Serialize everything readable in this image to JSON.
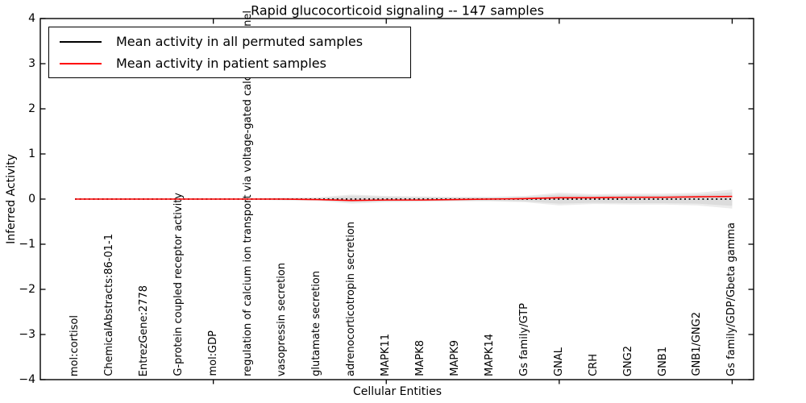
{
  "title": "Rapid glucocorticoid signaling -- 147 samples",
  "axes": {
    "xlabel": "Cellular Entities",
    "ylabel": "Inferred Activity",
    "ytick_labels": [
      "4",
      "3",
      "2",
      "1",
      "0",
      "−1",
      "−2",
      "−3",
      "−4"
    ]
  },
  "legend": {
    "entries": [
      {
        "label": "Mean activity in all permuted samples",
        "color": "#000000"
      },
      {
        "label": "Mean activity in patient samples",
        "color": "#ff0000"
      }
    ]
  },
  "chart_data": {
    "type": "line",
    "title": "Rapid glucocorticoid signaling -- 147 samples",
    "xlabel": "Cellular Entities",
    "ylabel": "Inferred Activity",
    "ylim": [
      -4,
      4
    ],
    "yticks": [
      4,
      3,
      2,
      1,
      0,
      -1,
      -2,
      -3,
      -4
    ],
    "grid": false,
    "legend_position": "upper left",
    "categories": [
      "mol:cortisol",
      "ChemicalAbstracts:86-01-1",
      "EntrezGene:2778",
      "G-protein coupled receptor activity",
      "mol:GDP",
      "regulation of calcium ion transport via voltage-gated calcium channel",
      "vasopressin secretion",
      "glutamate secretion",
      "adrenocorticotropin secretion",
      "MAPK11",
      "MAPK8",
      "MAPK9",
      "MAPK14",
      "Gs family/GTP",
      "GNAL",
      "CRH",
      "GNG2",
      "GNB1",
      "GNB1/GNG2",
      "Gs family/GDP/Gbeta gamma"
    ],
    "series": [
      {
        "name": "Mean activity in all permuted samples",
        "color": "#000000",
        "line_style": "dotted",
        "values": [
          0,
          0,
          0,
          0,
          0,
          0,
          0,
          0,
          0,
          0,
          0,
          0,
          0,
          0,
          0,
          0,
          0,
          0,
          0,
          0
        ]
      },
      {
        "name": "Mean activity in patient samples",
        "color": "#ff0000",
        "line_style": "solid",
        "values": [
          0,
          0,
          0,
          0,
          0,
          0,
          0,
          -0.01,
          -0.03,
          -0.02,
          -0.02,
          -0.01,
          0,
          0.01,
          0.03,
          0.03,
          0.04,
          0.04,
          0.05,
          0.06
        ]
      }
    ],
    "bands": [
      {
        "name": "permuted-spread-outer",
        "color": "#ececec",
        "half_widths": [
          0.015,
          0.015,
          0.015,
          0.015,
          0.015,
          0.015,
          0.03,
          0.04,
          0.1,
          0.07,
          0.06,
          0.05,
          0.05,
          0.07,
          0.14,
          0.11,
          0.12,
          0.12,
          0.14,
          0.21
        ]
      },
      {
        "name": "permuted-spread-inner",
        "color": "#dcdcdc",
        "half_widths": [
          0.01,
          0.01,
          0.01,
          0.01,
          0.01,
          0.01,
          0.02,
          0.02,
          0.07,
          0.05,
          0.04,
          0.035,
          0.035,
          0.05,
          0.1,
          0.08,
          0.09,
          0.09,
          0.1,
          0.15
        ]
      }
    ],
    "xticks_at_category_index": [
      4,
      9,
      14,
      19
    ]
  }
}
